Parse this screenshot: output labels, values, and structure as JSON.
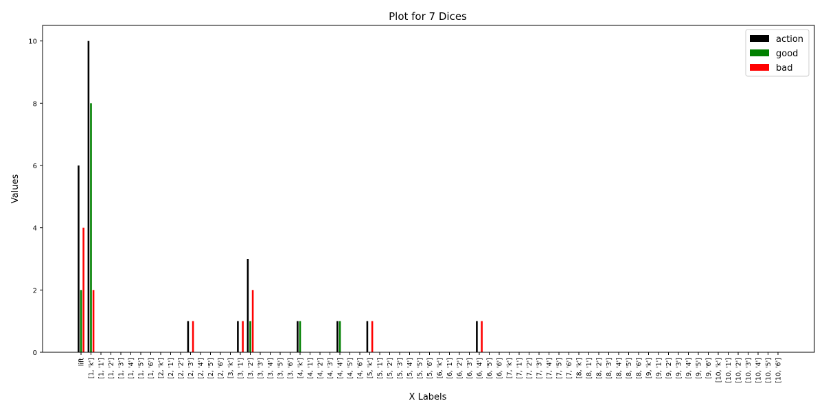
{
  "chart_data": {
    "type": "bar",
    "title": "Plot for 7 Dices",
    "xlabel": "X Labels",
    "ylabel": "Values",
    "ylim": [
      0,
      10.5
    ],
    "yticks": [
      0,
      2,
      4,
      6,
      8,
      10
    ],
    "grid": false,
    "legend_position": "top-right",
    "categories": [
      "lift",
      "[1, 'k']",
      "[1, '1']",
      "[1, '2']",
      "[1, '3']",
      "[1, '4']",
      "[1, '5']",
      "[1, '6']",
      "[2, 'k']",
      "[2, '1']",
      "[2, '2']",
      "[2, '3']",
      "[2, '4']",
      "[2, '5']",
      "[2, '6']",
      "[3, 'k']",
      "[3, '1']",
      "[3, '2']",
      "[3, '3']",
      "[3, '4']",
      "[3, '5']",
      "[3, '6']",
      "[4, 'k']",
      "[4, '1']",
      "[4, '2']",
      "[4, '3']",
      "[4, '4']",
      "[4, '5']",
      "[4, '6']",
      "[5, 'k']",
      "[5, '1']",
      "[5, '2']",
      "[5, '3']",
      "[5, '4']",
      "[5, '5']",
      "[5, '6']",
      "[6, 'k']",
      "[6, '1']",
      "[6, '2']",
      "[6, '3']",
      "[6, '4']",
      "[6, '5']",
      "[6, '6']",
      "[7, 'k']",
      "[7, '1']",
      "[7, '2']",
      "[7, '3']",
      "[7, '4']",
      "[7, '5']",
      "[7, '6']",
      "[8, 'k']",
      "[8, '1']",
      "[8, '2']",
      "[8, '3']",
      "[8, '4']",
      "[8, '5']",
      "[8, '6']",
      "[9, 'k']",
      "[9, '1']",
      "[9, '2']",
      "[9, '3']",
      "[9, '4']",
      "[9, '5']",
      "[9, '6']",
      "[10, 'k']",
      "[10, '1']",
      "[10, '2']",
      "[10, '3']",
      "[10, '4']",
      "[10, '5']",
      "[10, '6']"
    ],
    "series": [
      {
        "name": "action",
        "color": "#000000",
        "values": [
          6,
          10,
          0,
          0,
          0,
          0,
          0,
          0,
          0,
          0,
          0,
          1,
          0,
          0,
          0,
          0,
          1,
          3,
          0,
          0,
          0,
          0,
          1,
          0,
          0,
          0,
          1,
          0,
          0,
          1,
          0,
          0,
          0,
          0,
          0,
          0,
          0,
          0,
          0,
          0,
          1,
          0,
          0,
          0,
          0,
          0,
          0,
          0,
          0,
          0,
          0,
          0,
          0,
          0,
          0,
          0,
          0,
          0,
          0,
          0,
          0,
          0,
          0,
          0,
          0,
          0,
          0,
          0,
          0,
          0,
          0
        ]
      },
      {
        "name": "good",
        "color": "#008000",
        "values": [
          2,
          8,
          0,
          0,
          0,
          0,
          0,
          0,
          0,
          0,
          0,
          0,
          0,
          0,
          0,
          0,
          0,
          1,
          0,
          0,
          0,
          0,
          1,
          0,
          0,
          0,
          1,
          0,
          0,
          0,
          0,
          0,
          0,
          0,
          0,
          0,
          0,
          0,
          0,
          0,
          0,
          0,
          0,
          0,
          0,
          0,
          0,
          0,
          0,
          0,
          0,
          0,
          0,
          0,
          0,
          0,
          0,
          0,
          0,
          0,
          0,
          0,
          0,
          0,
          0,
          0,
          0,
          0,
          0,
          0,
          0
        ]
      },
      {
        "name": "bad",
        "color": "#ff0000",
        "values": [
          4,
          2,
          0,
          0,
          0,
          0,
          0,
          0,
          0,
          0,
          0,
          1,
          0,
          0,
          0,
          0,
          1,
          2,
          0,
          0,
          0,
          0,
          0,
          0,
          0,
          0,
          0,
          0,
          0,
          1,
          0,
          0,
          0,
          0,
          0,
          0,
          0,
          0,
          0,
          0,
          1,
          0,
          0,
          0,
          0,
          0,
          0,
          0,
          0,
          0,
          0,
          0,
          0,
          0,
          0,
          0,
          0,
          0,
          0,
          0,
          0,
          0,
          0,
          0,
          0,
          0,
          0,
          0,
          0,
          0,
          0
        ]
      }
    ]
  }
}
